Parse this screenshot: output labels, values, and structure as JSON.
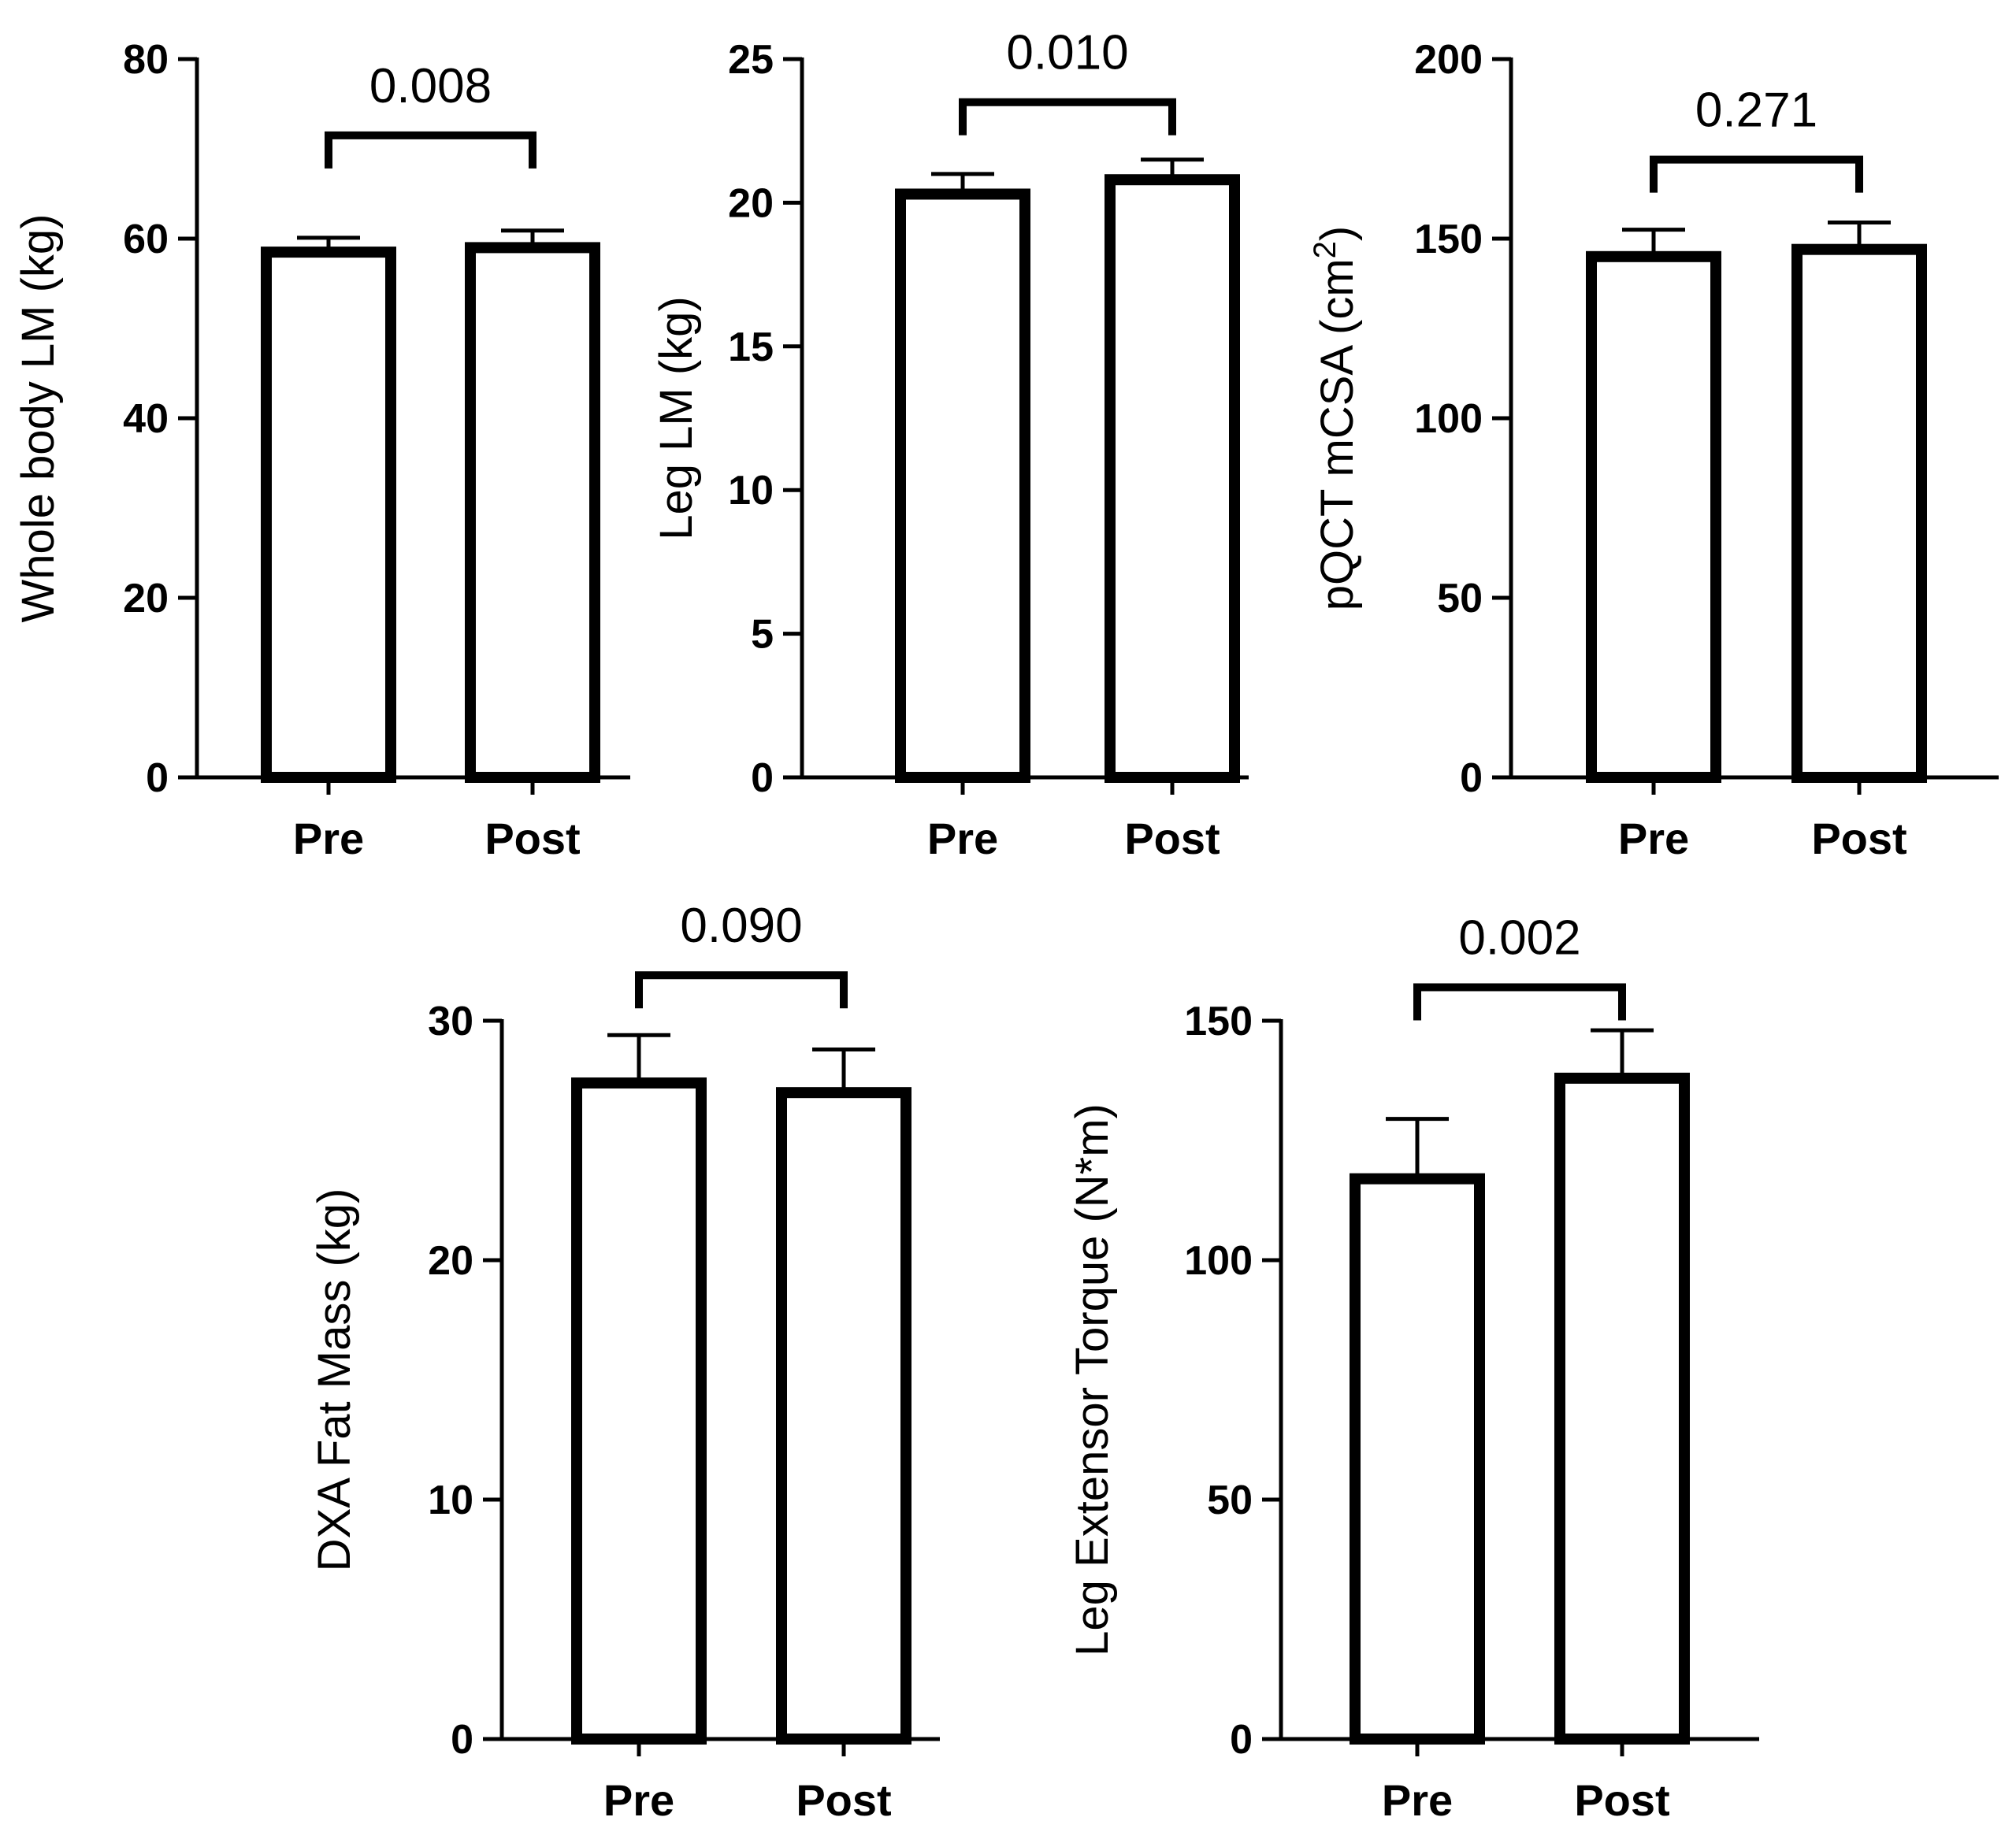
{
  "chart_data": [
    {
      "type": "bar",
      "categories": [
        "Pre",
        "Post"
      ],
      "values": [
        58.5,
        59.0
      ],
      "errors": [
        1.6,
        1.9
      ],
      "ylabel": "Whole body LM (kg)",
      "ylim": [
        0,
        80
      ],
      "yticks": [
        0,
        20,
        40,
        60,
        80
      ],
      "comparison": {
        "label": "0.008",
        "bracket_value": 71.5
      }
    },
    {
      "type": "bar",
      "categories": [
        "Pre",
        "Post"
      ],
      "values": [
        20.3,
        20.8
      ],
      "errors": [
        0.7,
        0.7
      ],
      "ylabel": "Leg LM (kg)",
      "ylim": [
        0,
        25
      ],
      "yticks": [
        0,
        5,
        10,
        15,
        20,
        25
      ],
      "comparison": {
        "label": "0.010",
        "bracket_value": 23.5
      }
    },
    {
      "type": "bar",
      "categories": [
        "Pre",
        "Post"
      ],
      "values": [
        145,
        147
      ],
      "errors": [
        7.5,
        7.5
      ],
      "ylabel": "pQCT mCSA (cm",
      "ylabel_sup": "2",
      "ylabel_end": ")",
      "ylim": [
        0,
        200
      ],
      "yticks": [
        0,
        50,
        100,
        150,
        200
      ],
      "comparison": {
        "label": "0.271",
        "bracket_value": 172
      }
    },
    {
      "type": "bar",
      "categories": [
        "Pre",
        "Post"
      ],
      "values": [
        27.4,
        27.0
      ],
      "errors": [
        2.0,
        1.8
      ],
      "ylabel": "DXA Fat Mass (kg)",
      "ylim": [
        0,
        30
      ],
      "yticks": [
        0,
        10,
        20,
        30
      ],
      "comparison": {
        "label": "0.090",
        "bracket_value": 31.9
      }
    },
    {
      "type": "bar",
      "categories": [
        "Pre",
        "Post"
      ],
      "values": [
        117,
        138
      ],
      "errors": [
        12.5,
        10.0
      ],
      "ylabel": "Leg Extensor Torque (N*m)",
      "ylim": [
        0,
        150
      ],
      "yticks": [
        0,
        50,
        100,
        150
      ],
      "comparison": {
        "label": "0.002",
        "bracket_value": 157
      }
    }
  ]
}
